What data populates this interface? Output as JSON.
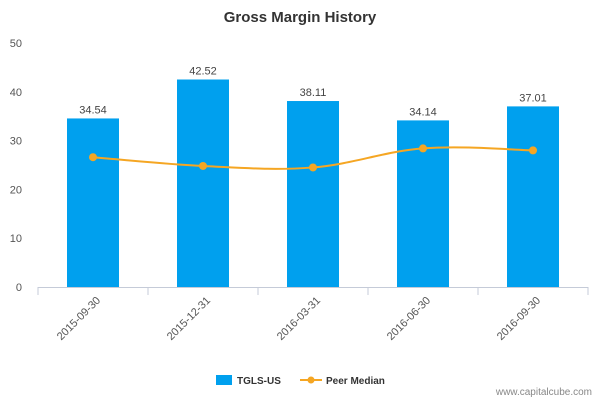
{
  "chart_data": {
    "type": "bar",
    "title": "Gross Margin History",
    "xlabel": "",
    "ylabel": "",
    "categories": [
      "2015-09-30",
      "2015-12-31",
      "2016-03-31",
      "2016-06-30",
      "2016-09-30"
    ],
    "ylim": [
      0,
      50
    ],
    "yticks": [
      "0",
      "10",
      "20",
      "30",
      "40",
      "50"
    ],
    "series": [
      {
        "name": "TGLS-US",
        "type": "bar",
        "color": "#00a0ee",
        "values": [
          34.54,
          42.52,
          38.11,
          34.14,
          37.01
        ],
        "labels": [
          "34.54",
          "42.52",
          "38.11",
          "34.14",
          "37.01"
        ]
      },
      {
        "name": "Peer Median",
        "type": "line",
        "color": "#f5a623",
        "values": [
          26.6,
          24.8,
          24.5,
          28.4,
          28.0
        ]
      }
    ],
    "grid": false,
    "legend": "bottom-center"
  },
  "watermark": "www.capitalcube.com"
}
